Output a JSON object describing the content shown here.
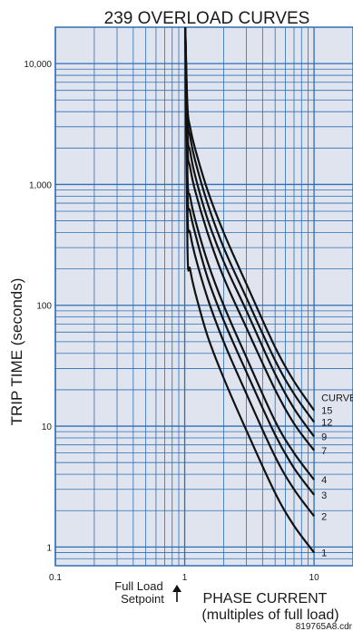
{
  "chart_data": {
    "type": "line",
    "title": "239 OVERLOAD  CURVES",
    "ylabel": "TRIP TIME (seconds)",
    "xlabel": [
      "PHASE CURRENT",
      "(multiples of full load)"
    ],
    "x_scale": "log",
    "y_scale": "log",
    "xlim": [
      0.1,
      20
    ],
    "ylim": [
      0.7,
      20000
    ],
    "x_tick_labels": [
      {
        "value": 0.1,
        "label": "0.1"
      },
      {
        "value": 1,
        "label": "1"
      },
      {
        "value": 10,
        "label": "10"
      }
    ],
    "y_tick_labels": [
      {
        "value": 1,
        "label": "1"
      },
      {
        "value": 10,
        "label": "10"
      },
      {
        "value": 100,
        "label": "100"
      },
      {
        "value": 1000,
        "label": "1,000"
      },
      {
        "value": 10000,
        "label": "10,000"
      }
    ],
    "grid": true,
    "legend_title": "CURVE",
    "series": [
      {
        "name": "15",
        "x": [
          1.01,
          1.05,
          1.1,
          1.2,
          1.5,
          2,
          3,
          5,
          7,
          10
        ],
        "y": [
          20000,
          4400,
          3000,
          2000,
          900,
          400,
          150,
          45,
          23.5,
          13.5
        ]
      },
      {
        "name": "12",
        "x": [
          1.01,
          1.05,
          1.1,
          1.2,
          1.5,
          2,
          3,
          5,
          7,
          10
        ],
        "y": [
          20000,
          3600,
          2500,
          1600,
          700,
          300,
          115,
          35,
          18.5,
          10.8
        ]
      },
      {
        "name": "9",
        "x": [
          1.01,
          1.05,
          1.1,
          1.2,
          1.5,
          2,
          3,
          5,
          7,
          10
        ],
        "y": [
          20000,
          2700,
          1900,
          1200,
          520,
          230,
          90,
          27,
          14,
          8.2
        ]
      },
      {
        "name": "7",
        "x": [
          1.01,
          1.05,
          1.1,
          1.2,
          1.5,
          2,
          3,
          5,
          7,
          10
        ],
        "y": [
          20000,
          2100,
          1400,
          900,
          400,
          170,
          65,
          20,
          10.5,
          6.3
        ]
      },
      {
        "name": "4",
        "x": [
          1.01,
          1.05,
          1.1,
          1.2,
          1.5,
          2,
          3,
          5,
          7,
          10
        ],
        "y": [
          20000,
          1200,
          800,
          520,
          230,
          100,
          37,
          11,
          6,
          3.6
        ]
      },
      {
        "name": "3",
        "x": [
          1.01,
          1.05,
          1.1,
          1.2,
          1.5,
          2,
          3,
          5,
          7,
          10
        ],
        "y": [
          20000,
          900,
          600,
          400,
          170,
          75,
          28,
          8.5,
          4.5,
          2.7
        ]
      },
      {
        "name": "2",
        "x": [
          1.01,
          1.05,
          1.1,
          1.2,
          1.5,
          2,
          3,
          5,
          7,
          10
        ],
        "y": [
          20000,
          600,
          400,
          260,
          115,
          50,
          18.5,
          5.6,
          3,
          1.8
        ]
      },
      {
        "name": "1",
        "x": [
          1.01,
          1.05,
          1.1,
          1.2,
          1.5,
          2,
          3,
          5,
          7,
          10
        ],
        "y": [
          20000,
          300,
          200,
          130,
          56,
          25,
          9.2,
          2.8,
          1.5,
          0.9
        ]
      }
    ],
    "annotations": {
      "full_load": [
        "Full Load",
        "Setpoint"
      ],
      "figure_code": "819765A8.cdr"
    },
    "colors": {
      "plot_background": "#dfe4ef",
      "grid": "#2e6fb3",
      "curve": "#111111"
    }
  }
}
